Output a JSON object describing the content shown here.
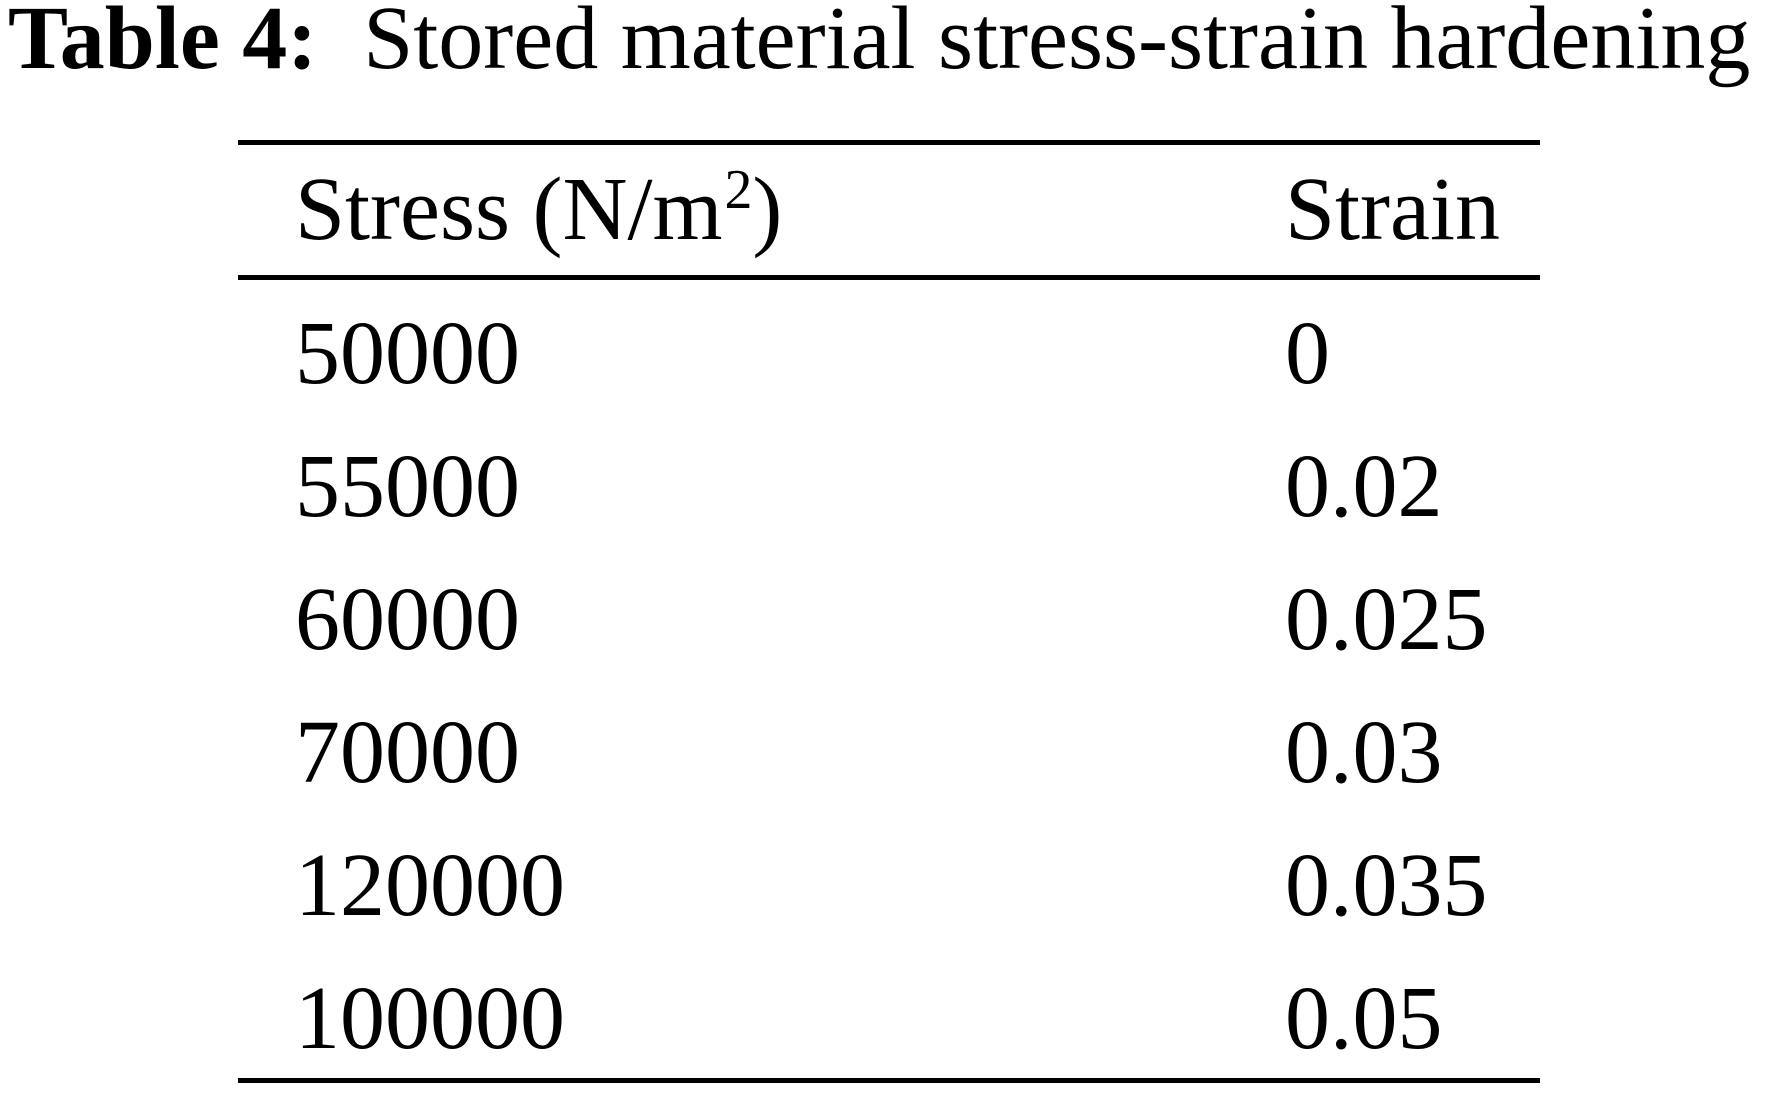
{
  "caption": {
    "label": "Table 4:",
    "text": "Stored material stress-strain hardening"
  },
  "table": {
    "header": {
      "stress_main": "Stress (N/m",
      "stress_sup": "2",
      "stress_close": ")",
      "strain": "Strain"
    },
    "rows": [
      {
        "stress": "50000",
        "strain": "0"
      },
      {
        "stress": "55000",
        "strain": "0.02"
      },
      {
        "stress": "60000",
        "strain": "0.025"
      },
      {
        "stress": "70000",
        "strain": "0.03"
      },
      {
        "stress": "120000",
        "strain": "0.035"
      },
      {
        "stress": "100000",
        "strain": "0.05"
      }
    ]
  },
  "chart_data": {
    "type": "table",
    "title": "Table 4: Stored material stress-strain hardening",
    "columns": [
      "Stress (N/m^2)",
      "Strain"
    ],
    "rows": [
      [
        50000,
        0
      ],
      [
        55000,
        0.02
      ],
      [
        60000,
        0.025
      ],
      [
        70000,
        0.03
      ],
      [
        120000,
        0.035
      ],
      [
        100000,
        0.05
      ]
    ]
  }
}
